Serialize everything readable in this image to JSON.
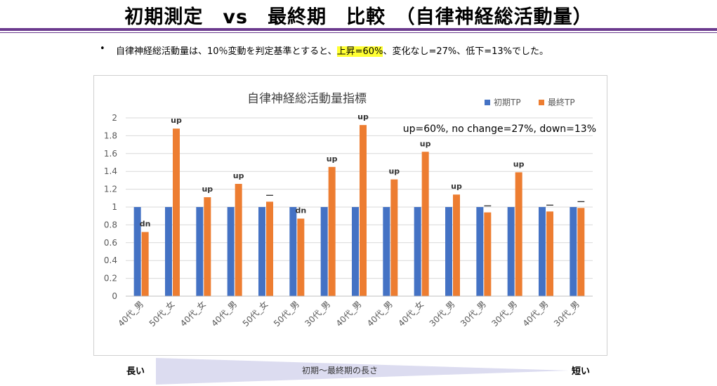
{
  "slide": {
    "title": "初期測定　vs　最終期　比較　（自律神経総活動量）",
    "bullet_mark": "•",
    "bullet_pre": "自律神経総活動量は、10％変動を判定基準とすると、",
    "bullet_highlight": "上昇=60%",
    "bullet_post": "、変化なし=27%、低下=13%でした。"
  },
  "colors": {
    "initial": "#4472c4",
    "final": "#ed7d31",
    "accent": "#6b3a8e",
    "highlight": "#ffff33"
  },
  "chart_data": {
    "type": "bar",
    "title": "自律神経総活動量指標",
    "annotation": "up=60%, no change=27%, down=13%",
    "categories": [
      "40代_男",
      "50代_女",
      "40代_女",
      "40代_男",
      "50代_女",
      "50代_男",
      "30代_男",
      "40代_男",
      "40代_男",
      "40代_女",
      "30代_男",
      "30代_男",
      "30代_男",
      "40代_男",
      "30代_男"
    ],
    "series": [
      {
        "name": "初期TP",
        "values": [
          1,
          1,
          1,
          1,
          1,
          1,
          1,
          1,
          1,
          1,
          1,
          1,
          1,
          1,
          1
        ]
      },
      {
        "name": "最終TP",
        "values": [
          0.72,
          1.88,
          1.11,
          1.26,
          1.06,
          0.87,
          1.45,
          1.92,
          1.31,
          1.62,
          1.14,
          0.94,
          1.39,
          0.95,
          0.99
        ]
      }
    ],
    "bar_labels": [
      "dn",
      "up",
      "up",
      "up",
      "—",
      "dn",
      "up",
      "up",
      "up",
      "up",
      "up",
      "—",
      "up",
      "—",
      "—"
    ],
    "ylim": [
      0,
      2
    ],
    "yticks": [
      0,
      0.2,
      0.4,
      0.6,
      0.8,
      1,
      1.2,
      1.4,
      1.6,
      1.8,
      2
    ],
    "grid": true,
    "legend": "top-right"
  },
  "footer": {
    "left_label": "長い",
    "center_label": "初期～最終期の長さ",
    "right_label": "短い"
  }
}
